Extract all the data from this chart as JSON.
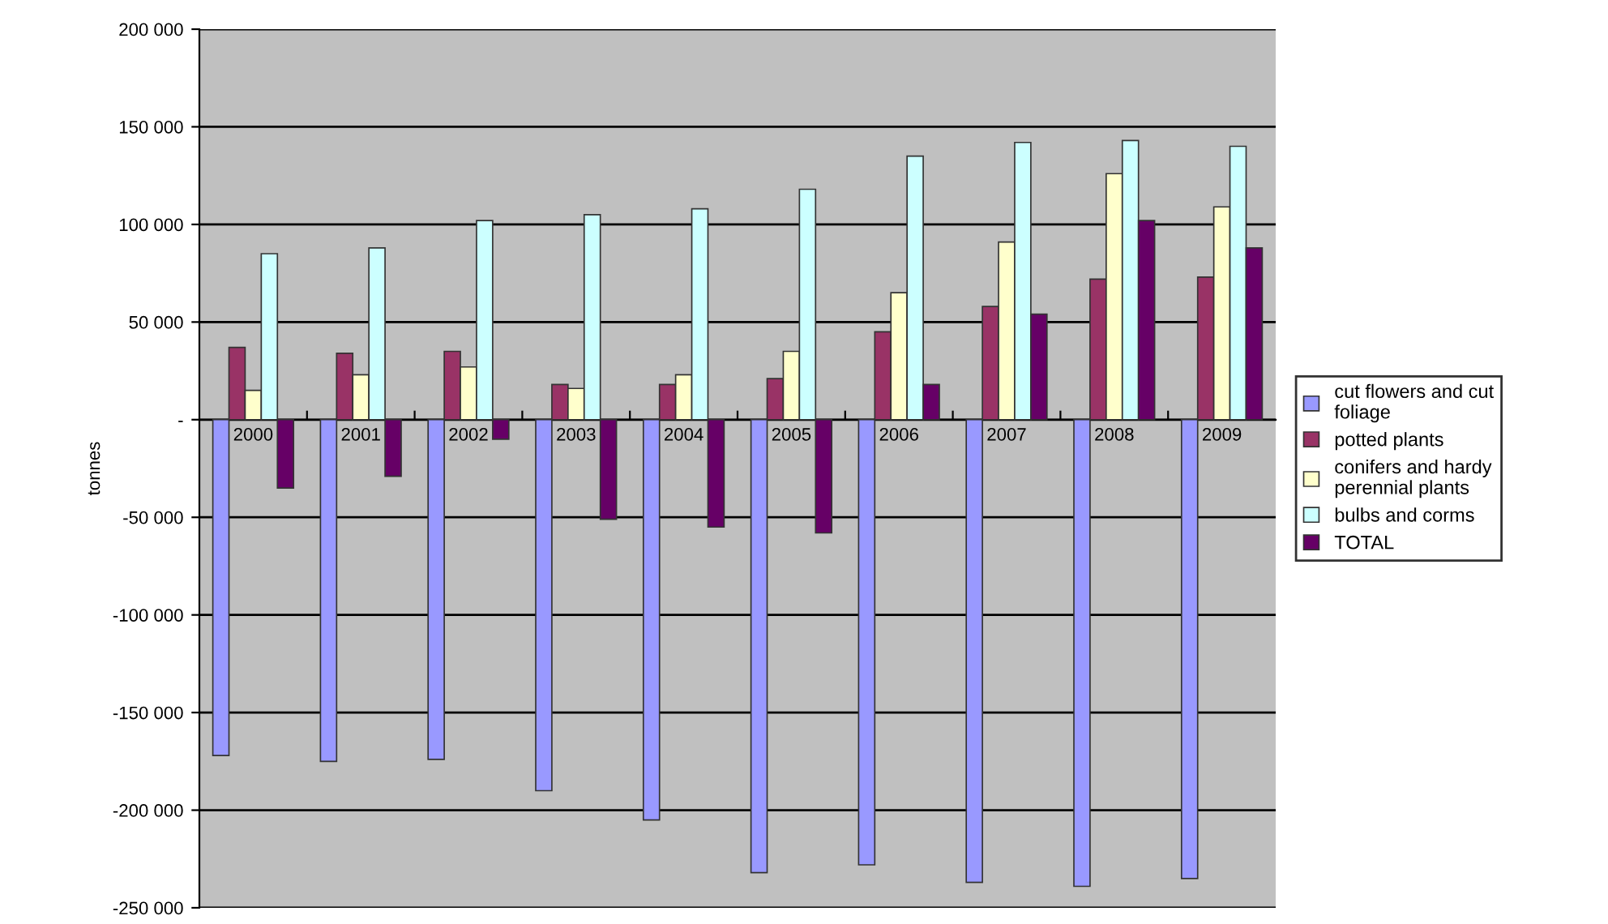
{
  "chart_data": {
    "type": "bar",
    "ylabel": "tonnes",
    "categories": [
      "2000",
      "2001",
      "2002",
      "2003",
      "2004",
      "2005",
      "2006",
      "2007",
      "2008",
      "2009"
    ],
    "series": [
      {
        "name": "cut flowers and cut foliage",
        "color": "#9999ff",
        "values": [
          -172000,
          -175000,
          -174000,
          -190000,
          -205000,
          -232000,
          -228000,
          -237000,
          -239000,
          -235000
        ]
      },
      {
        "name": "potted plants",
        "color": "#993366",
        "values": [
          37000,
          34000,
          35000,
          18000,
          18000,
          21000,
          45000,
          58000,
          72000,
          73000
        ]
      },
      {
        "name": "conifers and hardy perennial plants",
        "color": "#ffffcc",
        "values": [
          15000,
          23000,
          27000,
          16000,
          23000,
          35000,
          65000,
          91000,
          126000,
          109000
        ]
      },
      {
        "name": "bulbs and corms",
        "color": "#ccffff",
        "values": [
          85000,
          88000,
          102000,
          105000,
          108000,
          118000,
          135000,
          142000,
          143000,
          140000
        ]
      },
      {
        "name": "TOTAL",
        "color": "#660066",
        "values": [
          -35000,
          -29000,
          -10000,
          -51000,
          -55000,
          -58000,
          18000,
          54000,
          102000,
          88000
        ]
      }
    ],
    "ylim": [
      -250000,
      200000
    ],
    "yticks": [
      {
        "value": -250000,
        "label": "-250 000"
      },
      {
        "value": -200000,
        "label": "-200 000"
      },
      {
        "value": -150000,
        "label": "-150 000"
      },
      {
        "value": -100000,
        "label": "-100 000"
      },
      {
        "value": -50000,
        "label": "-50 000"
      },
      {
        "value": 0,
        "label": "-"
      },
      {
        "value": 50000,
        "label": "50 000"
      },
      {
        "value": 100000,
        "label": "100 000"
      },
      {
        "value": 150000,
        "label": "150 000"
      },
      {
        "value": 200000,
        "label": "200 000"
      }
    ],
    "grid": "y",
    "legend": "right"
  }
}
